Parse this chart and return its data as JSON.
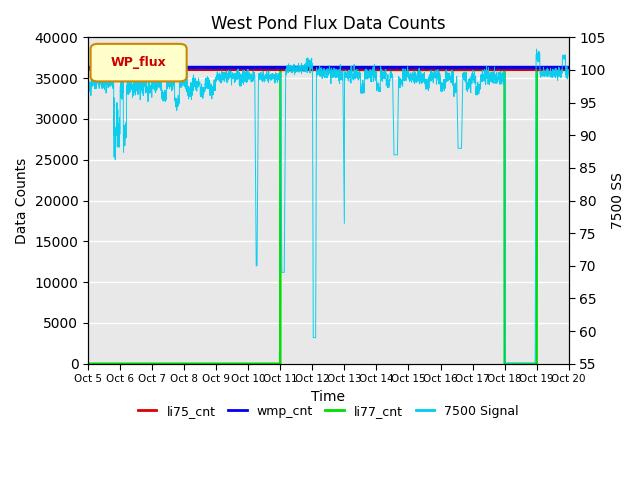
{
  "title": "West Pond Flux Data Counts",
  "xlabel": "Time",
  "ylabel_left": "Data Counts",
  "ylabel_right": "7500 SS",
  "xlim": [
    0,
    15
  ],
  "ylim_left": [
    0,
    40000
  ],
  "ylim_right": [
    55,
    105
  ],
  "yticks_left": [
    0,
    5000,
    10000,
    15000,
    20000,
    25000,
    30000,
    35000,
    40000
  ],
  "yticks_right": [
    55,
    60,
    65,
    70,
    75,
    80,
    85,
    90,
    95,
    100,
    105
  ],
  "xtick_labels": [
    "Oct 5",
    "Oct 6",
    "Oct 7",
    "Oct 8",
    "Oct 9",
    "Oct 10",
    "Oct 11",
    "Oct 12",
    "Oct 13",
    "Oct 14",
    "Oct 15",
    "Oct 16",
    "Oct 17",
    "Oct 18",
    "Oct 19",
    "Oct 20"
  ],
  "bg_color": "#e8e8e8",
  "legend_label": "WP_flux",
  "colors": {
    "li75": "#dd0000",
    "wmp": "#0000ee",
    "li77": "#00dd00",
    "signal": "#00ccee"
  },
  "figsize": [
    6.4,
    4.8
  ],
  "dpi": 100
}
